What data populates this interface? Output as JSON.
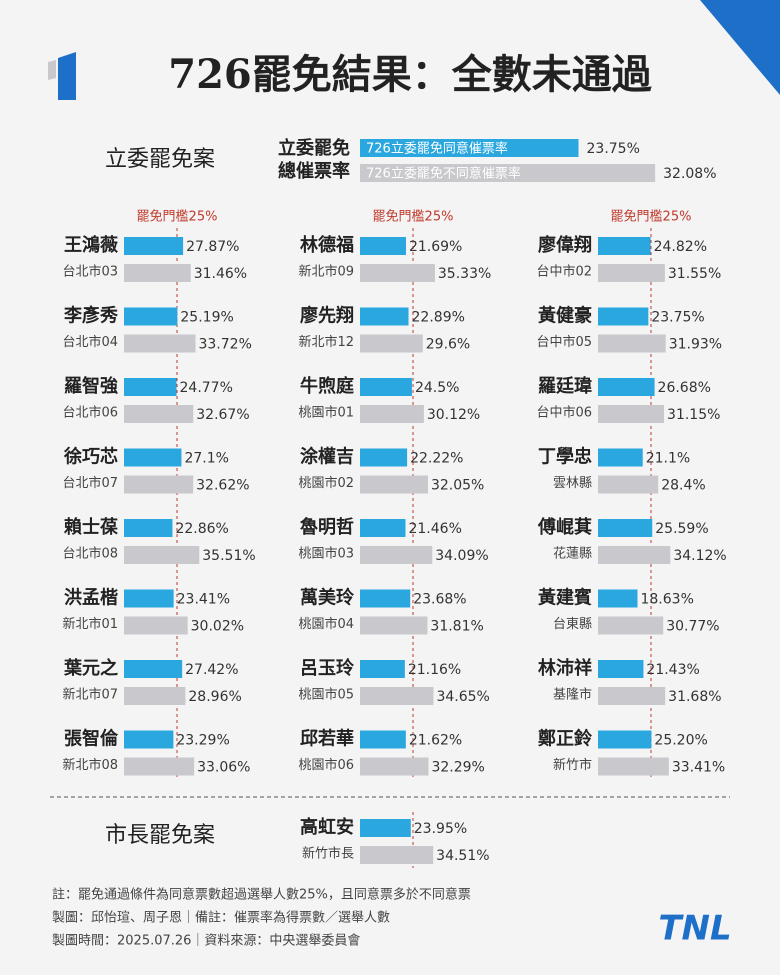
{
  "title": "726罷免結果：全數未通過",
  "legislator_section": "立委罷免案",
  "summary": {
    "label_lines": [
      "立委罷免",
      "總催票率"
    ],
    "series": [
      {
        "name": "726立委罷免同意催票率",
        "color": "#2aa7df",
        "value": 23.75,
        "value_label": "23.75%"
      },
      {
        "name": "726立委罷免不同意催票率",
        "color": "#c8c8cd",
        "value": 32.08,
        "value_label": "32.08%"
      }
    ]
  },
  "threshold": {
    "label": "罷免門檻25%",
    "value": 25
  },
  "colors": [
    "#2aa7df",
    "#c8c8cd"
  ],
  "columns": [
    [
      {
        "name": "王鴻薇",
        "district": "台北市03",
        "values": [
          27.87,
          31.46
        ],
        "value_labels": [
          "27.87%",
          "31.46%"
        ]
      },
      {
        "name": "李彥秀",
        "district": "台北市04",
        "values": [
          25.19,
          33.72
        ],
        "value_labels": [
          "25.19%",
          "33.72%"
        ]
      },
      {
        "name": "羅智強",
        "district": "台北市06",
        "values": [
          24.77,
          32.67
        ],
        "value_labels": [
          "24.77%",
          "32.67%"
        ]
      },
      {
        "name": "徐巧芯",
        "district": "台北市07",
        "values": [
          27.1,
          32.62
        ],
        "value_labels": [
          "27.1%",
          "32.62%"
        ]
      },
      {
        "name": "賴士葆",
        "district": "台北市08",
        "values": [
          22.86,
          35.51
        ],
        "value_labels": [
          "22.86%",
          "35.51%"
        ]
      },
      {
        "name": "洪孟楷",
        "district": "新北市01",
        "values": [
          23.41,
          30.02
        ],
        "value_labels": [
          "23.41%",
          "30.02%"
        ]
      },
      {
        "name": "葉元之",
        "district": "新北市07",
        "values": [
          27.42,
          28.96
        ],
        "value_labels": [
          "27.42%",
          "28.96%"
        ]
      },
      {
        "name": "張智倫",
        "district": "新北市08",
        "values": [
          23.29,
          33.06
        ],
        "value_labels": [
          "23.29%",
          "33.06%"
        ]
      }
    ],
    [
      {
        "name": "林德福",
        "district": "新北市09",
        "values": [
          21.69,
          35.33
        ],
        "value_labels": [
          "21.69%",
          "35.33%"
        ]
      },
      {
        "name": "廖先翔",
        "district": "新北市12",
        "values": [
          22.89,
          29.6
        ],
        "value_labels": [
          "22.89%",
          "29.6%"
        ]
      },
      {
        "name": "牛煦庭",
        "district": "桃園市01",
        "values": [
          24.5,
          30.12
        ],
        "value_labels": [
          "24.5%",
          "30.12%"
        ]
      },
      {
        "name": "涂權吉",
        "district": "桃園市02",
        "values": [
          22.22,
          32.05
        ],
        "value_labels": [
          "22.22%",
          "32.05%"
        ]
      },
      {
        "name": "魯明哲",
        "district": "桃園市03",
        "values": [
          21.46,
          34.09
        ],
        "value_labels": [
          "21.46%",
          "34.09%"
        ]
      },
      {
        "name": "萬美玲",
        "district": "桃園市04",
        "values": [
          23.68,
          31.81
        ],
        "value_labels": [
          "23.68%",
          "31.81%"
        ]
      },
      {
        "name": "呂玉玲",
        "district": "桃園市05",
        "values": [
          21.16,
          34.65
        ],
        "value_labels": [
          "21.16%",
          "34.65%"
        ]
      },
      {
        "name": "邱若華",
        "district": "桃園市06",
        "values": [
          21.62,
          32.29
        ],
        "value_labels": [
          "21.62%",
          "32.29%"
        ]
      }
    ],
    [
      {
        "name": "廖偉翔",
        "district": "台中市02",
        "values": [
          24.82,
          31.55
        ],
        "value_labels": [
          "24.82%",
          "31.55%"
        ]
      },
      {
        "name": "黃健豪",
        "district": "台中市05",
        "values": [
          23.75,
          31.93
        ],
        "value_labels": [
          "23.75%",
          "31.93%"
        ]
      },
      {
        "name": "羅廷瑋",
        "district": "台中市06",
        "values": [
          26.68,
          31.15
        ],
        "value_labels": [
          "26.68%",
          "31.15%"
        ]
      },
      {
        "name": "丁學忠",
        "district": "雲林縣",
        "values": [
          21.1,
          28.4
        ],
        "value_labels": [
          "21.1%",
          "28.4%"
        ]
      },
      {
        "name": "傅崐萁",
        "district": "花蓮縣",
        "values": [
          25.59,
          34.12
        ],
        "value_labels": [
          "25.59%",
          "34.12%"
        ]
      },
      {
        "name": "黃建賓",
        "district": "台東縣",
        "values": [
          18.63,
          30.77
        ],
        "value_labels": [
          "18.63%",
          "30.77%"
        ]
      },
      {
        "name": "林沛祥",
        "district": "基隆市",
        "values": [
          21.43,
          31.68
        ],
        "value_labels": [
          "21.43%",
          "31.68%"
        ]
      },
      {
        "name": "鄭正鈴",
        "district": "新竹市",
        "values": [
          25.2,
          33.41
        ],
        "value_labels": [
          "25.20%",
          "33.41%"
        ]
      }
    ]
  ],
  "mayor_section": "市長罷免案",
  "mayor": {
    "name": "高虹安",
    "district": "新竹市長",
    "values": [
      23.95,
      34.51
    ],
    "value_labels": [
      "23.95%",
      "34.51%"
    ]
  },
  "notes": [
    "註：罷免通過條件為同意票數超過選舉人數25%，且同意票多於不同意票",
    "製圖：邱怡瑄、周子恩｜備註：催票率為得票數／選舉人數",
    "製圖時間：2025.07.26｜資料來源：中央選舉委員會"
  ],
  "logo": "TNL"
}
